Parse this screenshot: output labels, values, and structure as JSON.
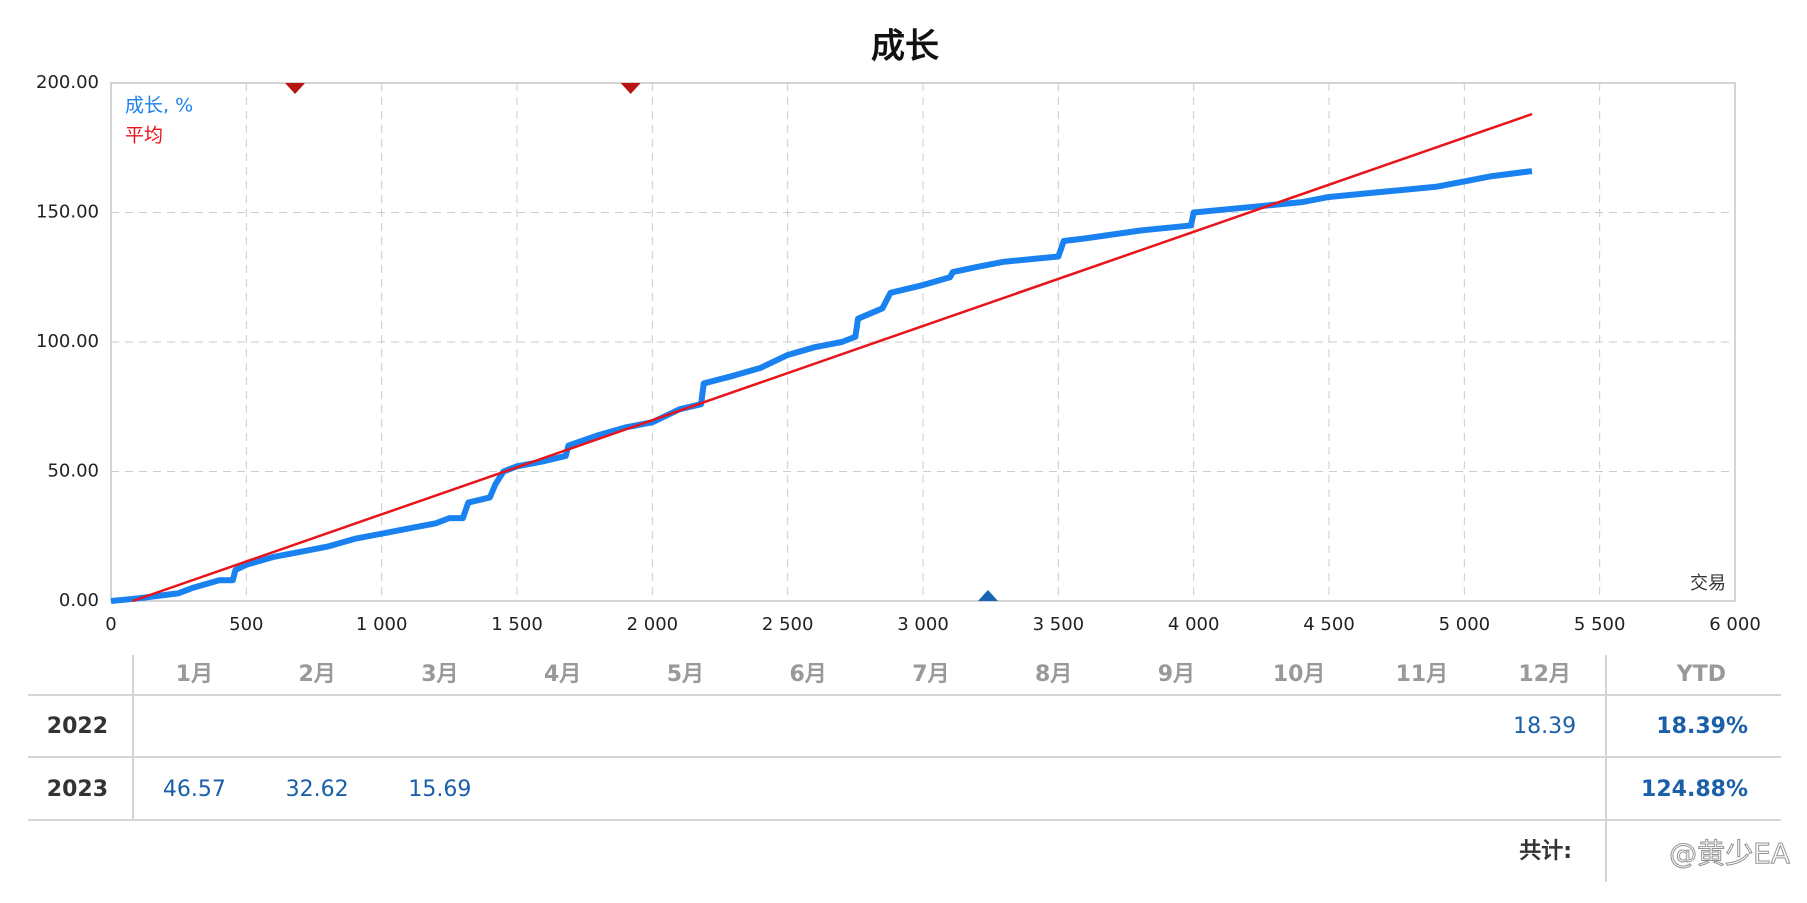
{
  "chart_data": {
    "type": "line",
    "title": "成长",
    "x_label": "交易",
    "series": [
      {
        "name": "成长, %",
        "color": "#1a82f0",
        "x": [
          0,
          100,
          250,
          300,
          400,
          450,
          460,
          500,
          600,
          700,
          800,
          900,
          1000,
          1100,
          1200,
          1250,
          1300,
          1320,
          1400,
          1420,
          1450,
          1500,
          1600,
          1680,
          1690,
          1800,
          1900,
          2000,
          2100,
          2180,
          2190,
          2300,
          2400,
          2500,
          2600,
          2700,
          2750,
          2760,
          2850,
          2880,
          3000,
          3100,
          3110,
          3200,
          3300,
          3400,
          3500,
          3520,
          3600,
          3800,
          3990,
          4000,
          4200,
          4400,
          4500,
          4700,
          4900,
          5000,
          5100,
          5250
        ],
        "values": [
          0,
          1,
          3,
          5,
          8,
          8,
          12,
          14,
          17,
          19,
          21,
          24,
          26,
          28,
          30,
          32,
          32,
          38,
          40,
          45,
          50,
          52,
          54,
          56,
          60,
          64,
          67,
          69,
          74,
          76,
          84,
          87,
          90,
          95,
          98,
          100,
          102,
          109,
          113,
          119,
          122,
          125,
          127,
          129,
          131,
          132,
          133,
          139,
          140,
          143,
          145,
          150,
          152,
          154,
          156,
          158,
          160,
          162,
          164,
          166
        ]
      },
      {
        "name": "平均",
        "color": "#e8141a",
        "x": [
          80,
          5250
        ],
        "values": [
          0,
          188
        ]
      }
    ],
    "markers": [
      {
        "x": 680,
        "side": "top",
        "color": "#b81414"
      },
      {
        "x": 1920,
        "side": "top",
        "color": "#b81414"
      },
      {
        "x": 3240,
        "side": "bottom",
        "color": "#1565b0"
      }
    ],
    "xlim": [
      0,
      6000
    ],
    "xticks": [
      0,
      500,
      {
        "value": 1000,
        "label": "1 000"
      },
      {
        "value": 1500,
        "label": "1 500"
      },
      {
        "value": 2000,
        "label": "2 000"
      },
      {
        "value": 2500,
        "label": "2 500"
      },
      {
        "value": 3000,
        "label": "3 000"
      },
      {
        "value": 3500,
        "label": "3 500"
      },
      {
        "value": 4000,
        "label": "4 000"
      },
      {
        "value": 4500,
        "label": "4 500"
      },
      {
        "value": 5000,
        "label": "5 000"
      },
      {
        "value": 5500,
        "label": "5 500"
      },
      {
        "value": 6000,
        "label": "6 000"
      }
    ],
    "ylim": [
      0,
      200
    ],
    "yticks": [
      {
        "value": 0,
        "label": "0.00"
      },
      {
        "value": 50,
        "label": "50.00"
      },
      {
        "value": 100,
        "label": "100.00"
      },
      {
        "value": 150,
        "label": "150.00"
      },
      {
        "value": 200,
        "label": "200.00"
      }
    ],
    "grid": true
  },
  "table": {
    "header": [
      "1月",
      "2月",
      "3月",
      "4月",
      "5月",
      "6月",
      "7月",
      "8月",
      "9月",
      "10月",
      "11月",
      "12月",
      "YTD"
    ],
    "rows": [
      [
        "2022",
        null,
        null,
        null,
        null,
        null,
        null,
        null,
        null,
        null,
        null,
        null,
        "18.39",
        "18.39%"
      ],
      [
        "2023",
        "46.57",
        "32.62",
        "15.69",
        null,
        null,
        null,
        null,
        null,
        null,
        null,
        null,
        null,
        "124.88%"
      ]
    ],
    "total_label": "共计:",
    "watermark": "@黄少EA"
  }
}
